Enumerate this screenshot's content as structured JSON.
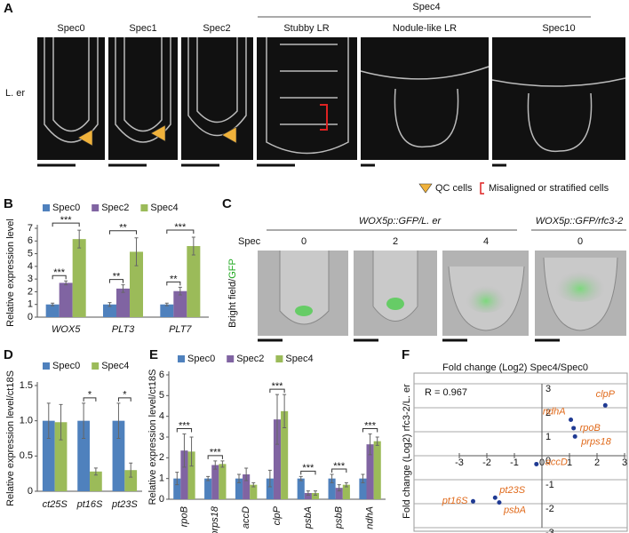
{
  "panel_labels": [
    "A",
    "B",
    "C",
    "D",
    "E",
    "F"
  ],
  "panel_a": {
    "group_header": "Spec4",
    "row_label": "L. er",
    "columns": [
      "Spec0",
      "Spec1",
      "Spec2",
      "Stubby LR",
      "Nodule-like LR",
      "Spec10"
    ],
    "legend": [
      "QC cells",
      "Misaligned or stratified cells"
    ]
  },
  "panel_c": {
    "headers": [
      "WOX5p::GFP/L. er",
      "WOX5p::GFP/rfc3-2"
    ],
    "row_label": "Spec",
    "specs": [
      "0",
      "2",
      "4",
      "0"
    ],
    "side_label": [
      "Bright field/",
      "GFP"
    ]
  },
  "chart_data": [
    {
      "type": "bar",
      "y_label": "Relative expression level",
      "categories": [
        "WOX5",
        "PLT3",
        "PLT7"
      ],
      "series": [
        {
          "name": "Spec0",
          "color": "#4f81bd",
          "values": [
            1,
            1,
            1
          ],
          "errors": [
            0.1,
            0.15,
            0.1
          ]
        },
        {
          "name": "Spec2",
          "color": "#8064a2",
          "values": [
            2.7,
            2.25,
            2.05
          ],
          "errors": [
            0.15,
            0.3,
            0.3
          ]
        },
        {
          "name": "Spec4",
          "color": "#9bbb59",
          "values": [
            6.15,
            5.15,
            5.6
          ],
          "errors": [
            0.7,
            1.1,
            0.7
          ]
        }
      ],
      "significance": [
        [
          "***",
          "***"
        ],
        [
          "**",
          "**"
        ],
        [
          "**",
          "***"
        ]
      ],
      "ylim": [
        0,
        7
      ],
      "yticks": [
        0,
        1,
        2,
        3,
        4,
        5,
        6,
        7
      ],
      "legend": "top"
    },
    {
      "type": "bar",
      "y_label": "Relative expression level/ct18S",
      "categories": [
        "ct25S",
        "pt16S",
        "pt23S"
      ],
      "series": [
        {
          "name": "Spec0",
          "color": "#4f81bd",
          "values": [
            1,
            1,
            1
          ],
          "errors": [
            0.25,
            0.25,
            0.25
          ]
        },
        {
          "name": "Spec4",
          "color": "#9bbb59",
          "values": [
            0.98,
            0.28,
            0.3
          ],
          "errors": [
            0.25,
            0.05,
            0.1
          ]
        }
      ],
      "significance": [
        [],
        [
          "*"
        ],
        [
          "*"
        ]
      ],
      "ylim": [
        0,
        1.5
      ],
      "yticks": [
        0,
        0.5,
        {
          "value": 1,
          "label": "1.0"
        },
        1.5
      ],
      "legend": "top"
    },
    {
      "type": "bar",
      "y_label": "Relative expression level/ct18S",
      "categories": [
        "rpoB",
        "prps18",
        "accD",
        "clpP",
        "psbA",
        "psbB",
        "ndhA"
      ],
      "series": [
        {
          "name": "Spec0",
          "color": "#4f81bd",
          "values": [
            1,
            1,
            1,
            1,
            1,
            1,
            1
          ],
          "errors": [
            0.3,
            0.1,
            0.2,
            0.4,
            0.1,
            0.2,
            0.2
          ]
        },
        {
          "name": "Spec2",
          "color": "#8064a2",
          "values": [
            2.35,
            1.65,
            1.2,
            3.85,
            0.3,
            0.55,
            2.65
          ],
          "errors": [
            0.8,
            0.2,
            0.3,
            1.2,
            0.1,
            0.15,
            0.5
          ]
        },
        {
          "name": "Spec4",
          "color": "#9bbb59",
          "values": [
            2.3,
            1.7,
            0.7,
            4.25,
            0.3,
            0.7,
            2.8
          ],
          "errors": [
            0.7,
            0.15,
            0.1,
            0.8,
            0.1,
            0.1,
            0.2
          ]
        }
      ],
      "significance": [
        [
          "***"
        ],
        [
          "***"
        ],
        [],
        [
          "***"
        ],
        [
          "***"
        ],
        [
          "***"
        ],
        [
          "***"
        ]
      ],
      "ylim": [
        0,
        6
      ],
      "yticks": [
        0,
        1,
        2,
        3,
        4,
        5,
        6
      ],
      "legend": "top"
    },
    {
      "type": "scatter",
      "title": "Fold change (Log2) Spec4/Spec0",
      "y_label": "Fold change (Log2) rfc3-2/L. er",
      "annotation": "R = 0.967",
      "labels": [
        "clpP",
        "ndhA",
        "rpoB",
        "prps18",
        "accD",
        "pt16S",
        "pt23S",
        "psbA"
      ],
      "x": [
        2.3,
        1.05,
        1.15,
        1.2,
        -0.2,
        -2.5,
        -1.7,
        -1.55
      ],
      "y": [
        2.1,
        1.5,
        1.15,
        0.8,
        -0.35,
        -1.9,
        -1.75,
        -1.95
      ],
      "color": "#1f3a93",
      "label_color": "#e06a1b",
      "xlim": [
        -3,
        3
      ],
      "ylim": [
        -3,
        3
      ],
      "xticks": [
        -3,
        -2,
        -1,
        0,
        1,
        2,
        3
      ],
      "yticks": [
        -3,
        -2,
        -1,
        0,
        1,
        2,
        3
      ],
      "grid": true
    }
  ]
}
